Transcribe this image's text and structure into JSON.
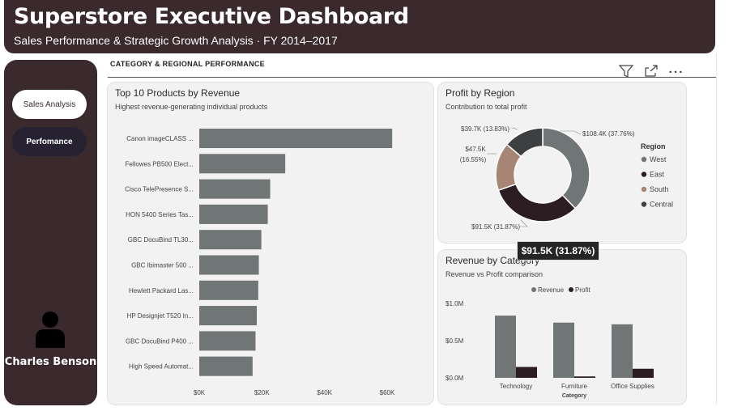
{
  "header": {
    "title": "Superstore Executive Dashboard",
    "subtitle": "Sales Performance & Strategic Growth Analysis · FY 2014–2017"
  },
  "sidebar": {
    "items": [
      {
        "label": "Sales Analysis",
        "active": true
      },
      {
        "label": "Perfomance",
        "active": false
      }
    ],
    "user_name": "Charles Benson",
    "avatar_icon": "user-icon"
  },
  "section": {
    "title": "CATEGORY & REGIONAL PERFORMANCE",
    "icons": [
      "filter-icon",
      "focus-mode-icon",
      "more-options-icon"
    ]
  },
  "tooltip": {
    "text": "$91.5K (31.87%)"
  },
  "colors": {
    "dark": "#3a2a2d",
    "nav_dark": "#262231",
    "bar_gray": "#6f7675",
    "region_west": "#6f7675",
    "region_east": "#2c1d22",
    "region_south": "#a78575",
    "region_central": "#3d3f41",
    "profit_bar": "#2c1d22"
  },
  "chart_data": [
    {
      "type": "bar",
      "orientation": "horizontal",
      "title": "Top 10 Products by Revenue",
      "subtitle": "Highest revenue-generating individual products",
      "categories": [
        "Canon imageCLASS ...",
        "Fellowes PB500 Elect...",
        "Cisco TelePresence S...",
        "HON 5400 Series Tas...",
        "GBC DocuBind TL30...",
        "GBC Ibimaster 500 ...",
        "Hewlett Packard Las...",
        "HP Designjet T520 In...",
        "GBC DocuBind P400 ...",
        "High Speed Automat..."
      ],
      "values": [
        61600,
        27450,
        22640,
        21870,
        19820,
        19020,
        18840,
        18370,
        17960,
        17030
      ],
      "xlim": [
        0,
        60000
      ],
      "xticks": [
        "$0K",
        "$20K",
        "$40K",
        "$60K"
      ],
      "color": "#6f7675"
    },
    {
      "type": "pie",
      "donut": true,
      "title": "Profit by Region",
      "subtitle": "Contribution to total profit",
      "legend_title": "Region",
      "legend_position": "right",
      "slices": [
        {
          "name": "West",
          "value": 108.4,
          "percent": 37.76,
          "label": "$108.4K (37.76%)",
          "color": "#6f7675"
        },
        {
          "name": "East",
          "value": 91.5,
          "percent": 31.87,
          "label": "$91.5K (31.87%)",
          "color": "#2c1d22"
        },
        {
          "name": "South",
          "value": 47.5,
          "percent": 16.55,
          "label_line1": "$47.5K",
          "label_line2": "(16.55%)",
          "color": "#a78575"
        },
        {
          "name": "Central",
          "value": 39.7,
          "percent": 13.83,
          "label": "$39.7K (13.83%)",
          "color": "#3d3f41"
        }
      ]
    },
    {
      "type": "bar",
      "orientation": "vertical",
      "title": "Revenue by Category",
      "subtitle": "Revenue vs Profit comparison",
      "xlabel": "Category",
      "legend_position": "top",
      "categories": [
        "Technology",
        "Furniture",
        "Office Supplies"
      ],
      "series": [
        {
          "name": "Revenue",
          "values": [
            0.836,
            0.742,
            0.719
          ],
          "color": "#6f7675"
        },
        {
          "name": "Profit",
          "values": [
            0.146,
            0.019,
            0.122
          ],
          "color": "#2c1d22"
        }
      ],
      "ylim": [
        0,
        1.0
      ],
      "yticks": [
        "$0.0M",
        "$0.5M",
        "$1.0M"
      ]
    }
  ]
}
